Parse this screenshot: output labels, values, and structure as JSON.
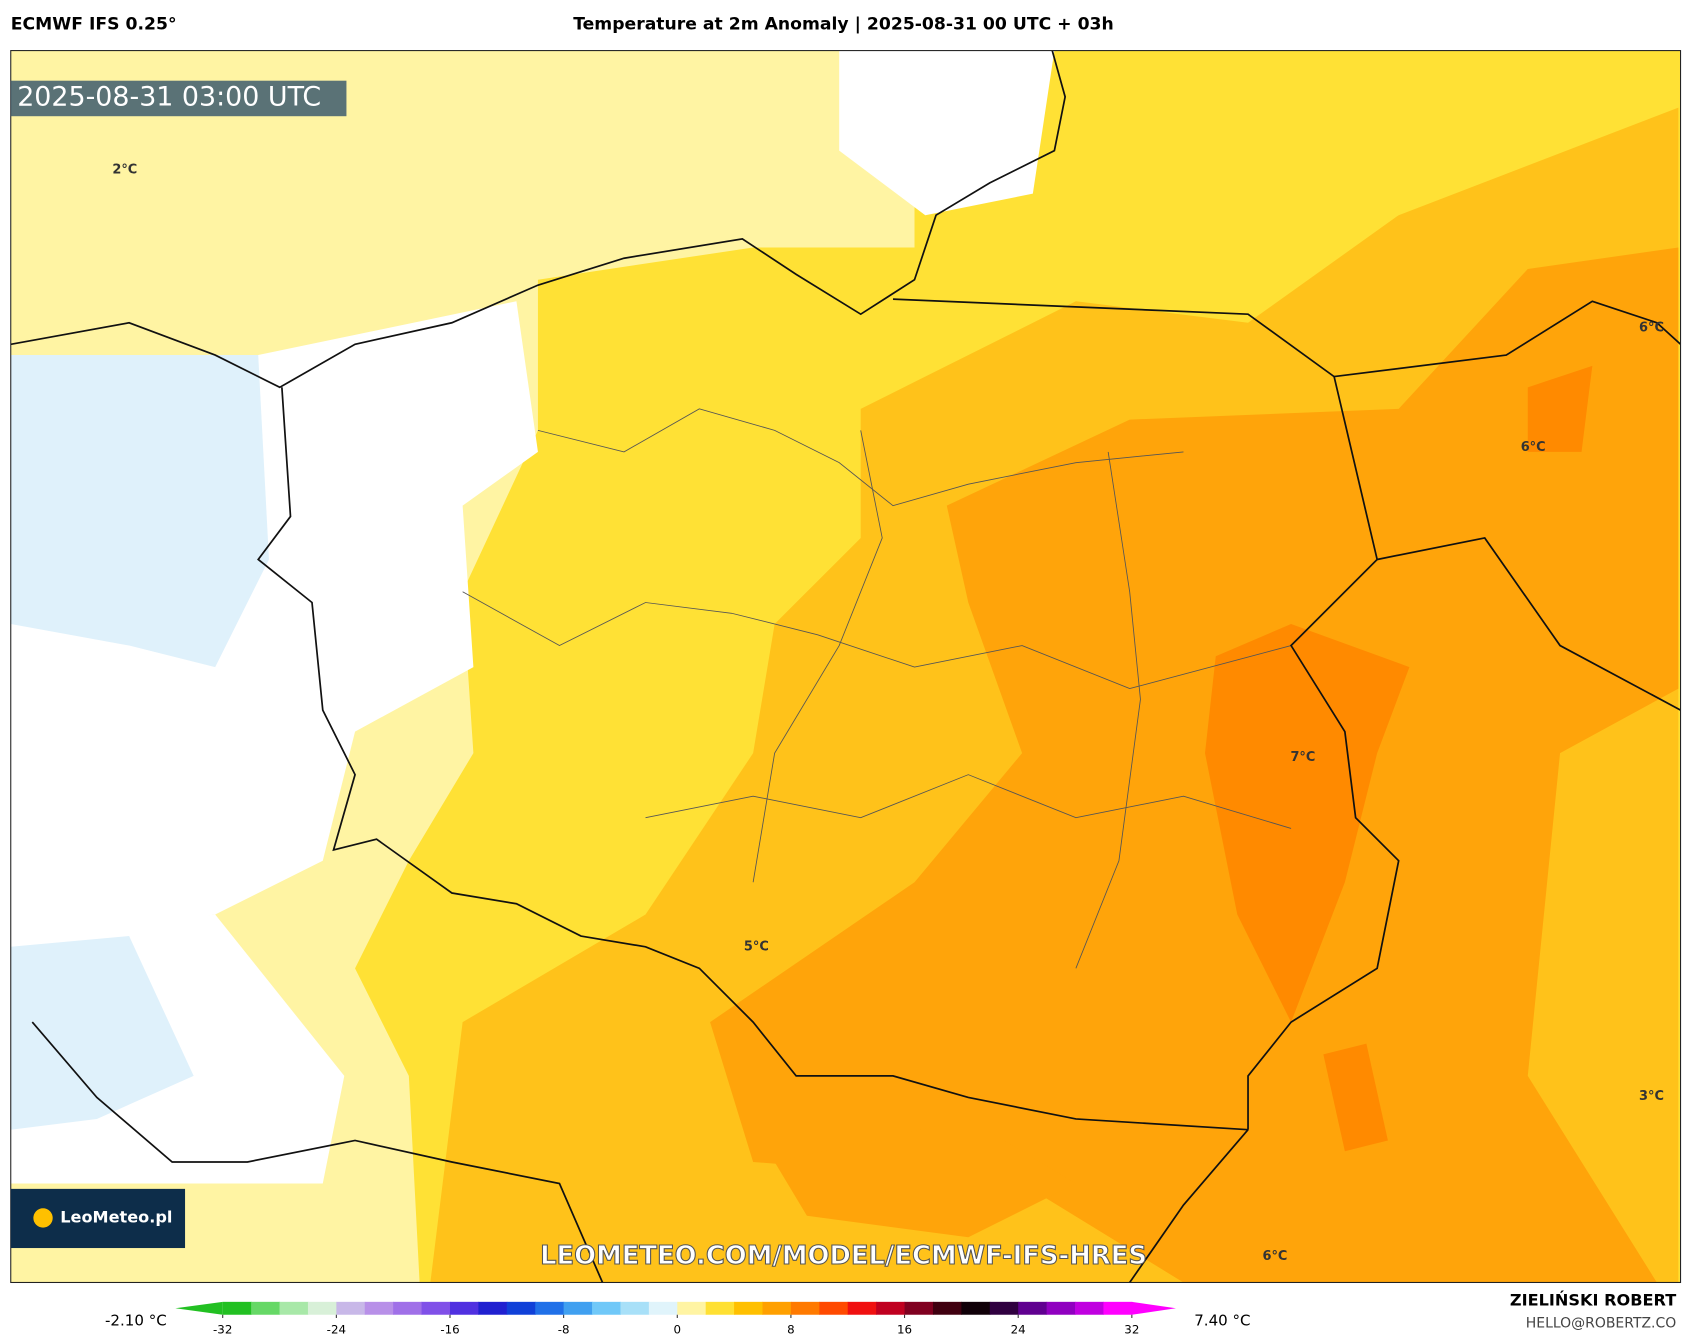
{
  "header": {
    "model": "ECMWF IFS 0.25°",
    "title": "Temperature at 2m Anomaly | 2025-08-31 00 UTC + 03h"
  },
  "map": {
    "timestamp": "2025-08-31 03:00 UTC",
    "logo": "LeoMeteo.pl",
    "watermark": "LEOMETEO.COM/MODEL/ECMWF-IFS-HRES",
    "contour_labels": [
      "2°C",
      "6°C",
      "6°C",
      "7°C",
      "5°C",
      "3°C",
      "6°C"
    ]
  },
  "colorbar": {
    "min_label": "-2.10 °C",
    "max_label": "7.40 °C",
    "range": [
      -32,
      32
    ],
    "ticks": [
      -32,
      -24,
      -16,
      -8,
      0,
      8,
      16,
      24,
      32
    ],
    "colors": [
      "#22c022",
      "#66d866",
      "#a8e8a8",
      "#d8f0d8",
      "#c8b8e8",
      "#b890e8",
      "#a070e8",
      "#8050e8",
      "#5030e0",
      "#2020d0",
      "#1040d8",
      "#2070e8",
      "#40a0f0",
      "#70c8f8",
      "#a8e0f8",
      "#e0f4fb",
      "#fff4a3",
      "#ffe033",
      "#ffc000",
      "#ffa000",
      "#ff7a00",
      "#ff4a00",
      "#f01010",
      "#c00020",
      "#800020",
      "#400010",
      "#100008",
      "#300040",
      "#600090",
      "#9000c0",
      "#c000e0",
      "#ff00ff"
    ]
  },
  "footer": {
    "author": "ZIELIŃSKI ROBERT",
    "email": "HELLO@ROBERTZ.CO"
  }
}
